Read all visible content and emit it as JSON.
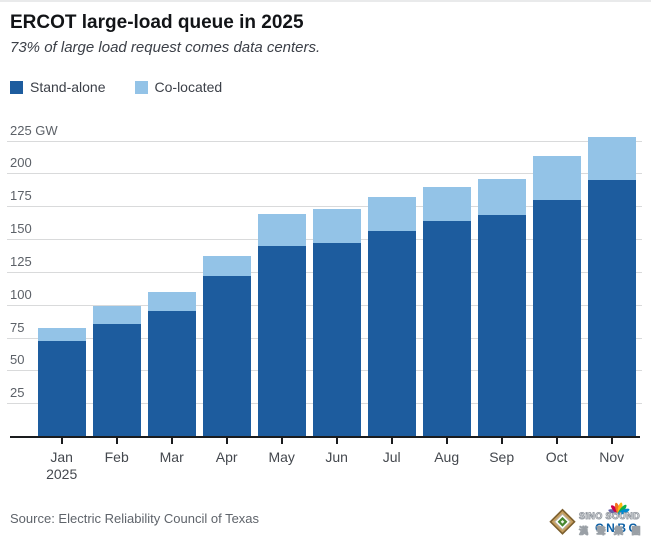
{
  "header": {
    "title": "ERCOT large-load queue in 2025",
    "subtitle": "73% of large load request comes data centers."
  },
  "legend": {
    "items": [
      {
        "label": "Stand-alone",
        "color": "#1d5c9e"
      },
      {
        "label": "Co-located",
        "color": "#93c3e7"
      }
    ]
  },
  "chart_data": {
    "type": "bar",
    "stacked": true,
    "title": "ERCOT large-load queue in 2025",
    "subtitle": "73% of large load request comes data centers.",
    "unit": "GW",
    "categories": [
      "Jan",
      "Feb",
      "Mar",
      "Apr",
      "May",
      "Jun",
      "Jul",
      "Aug",
      "Sep",
      "Oct",
      "Nov"
    ],
    "x_axis_year_label": {
      "category_index": 0,
      "text": "2025"
    },
    "series": [
      {
        "name": "Stand-alone",
        "color": "#1d5c9e",
        "values": [
          72,
          85,
          95,
          122,
          145,
          147,
          156,
          164,
          168,
          180,
          195
        ]
      },
      {
        "name": "Co-located",
        "color": "#93c3e7",
        "values": [
          10,
          14,
          15,
          15,
          24,
          26,
          26,
          26,
          28,
          33,
          33
        ]
      }
    ],
    "totals": [
      82,
      99,
      110,
      137,
      169,
      173,
      182,
      190,
      196,
      213,
      228
    ],
    "ylim": [
      0,
      230
    ],
    "y_ticks": [
      25,
      50,
      75,
      100,
      125,
      150,
      175,
      200,
      225
    ],
    "y_top_tick_label": "225 GW",
    "grid": true,
    "legend_position": "top-left"
  },
  "source": {
    "text": "Source: Electric Reliability Council of Texas"
  },
  "watermark": {
    "line1": "SiNO SOUND",
    "line2": "漢 聲 集 團",
    "cnbc_text": "CNBC",
    "cnbc_color": "#0b5fa5",
    "peacock_colors": [
      "#6460aa",
      "#cc004c",
      "#f37021",
      "#fcb711",
      "#0db14b",
      "#0089d0"
    ]
  }
}
